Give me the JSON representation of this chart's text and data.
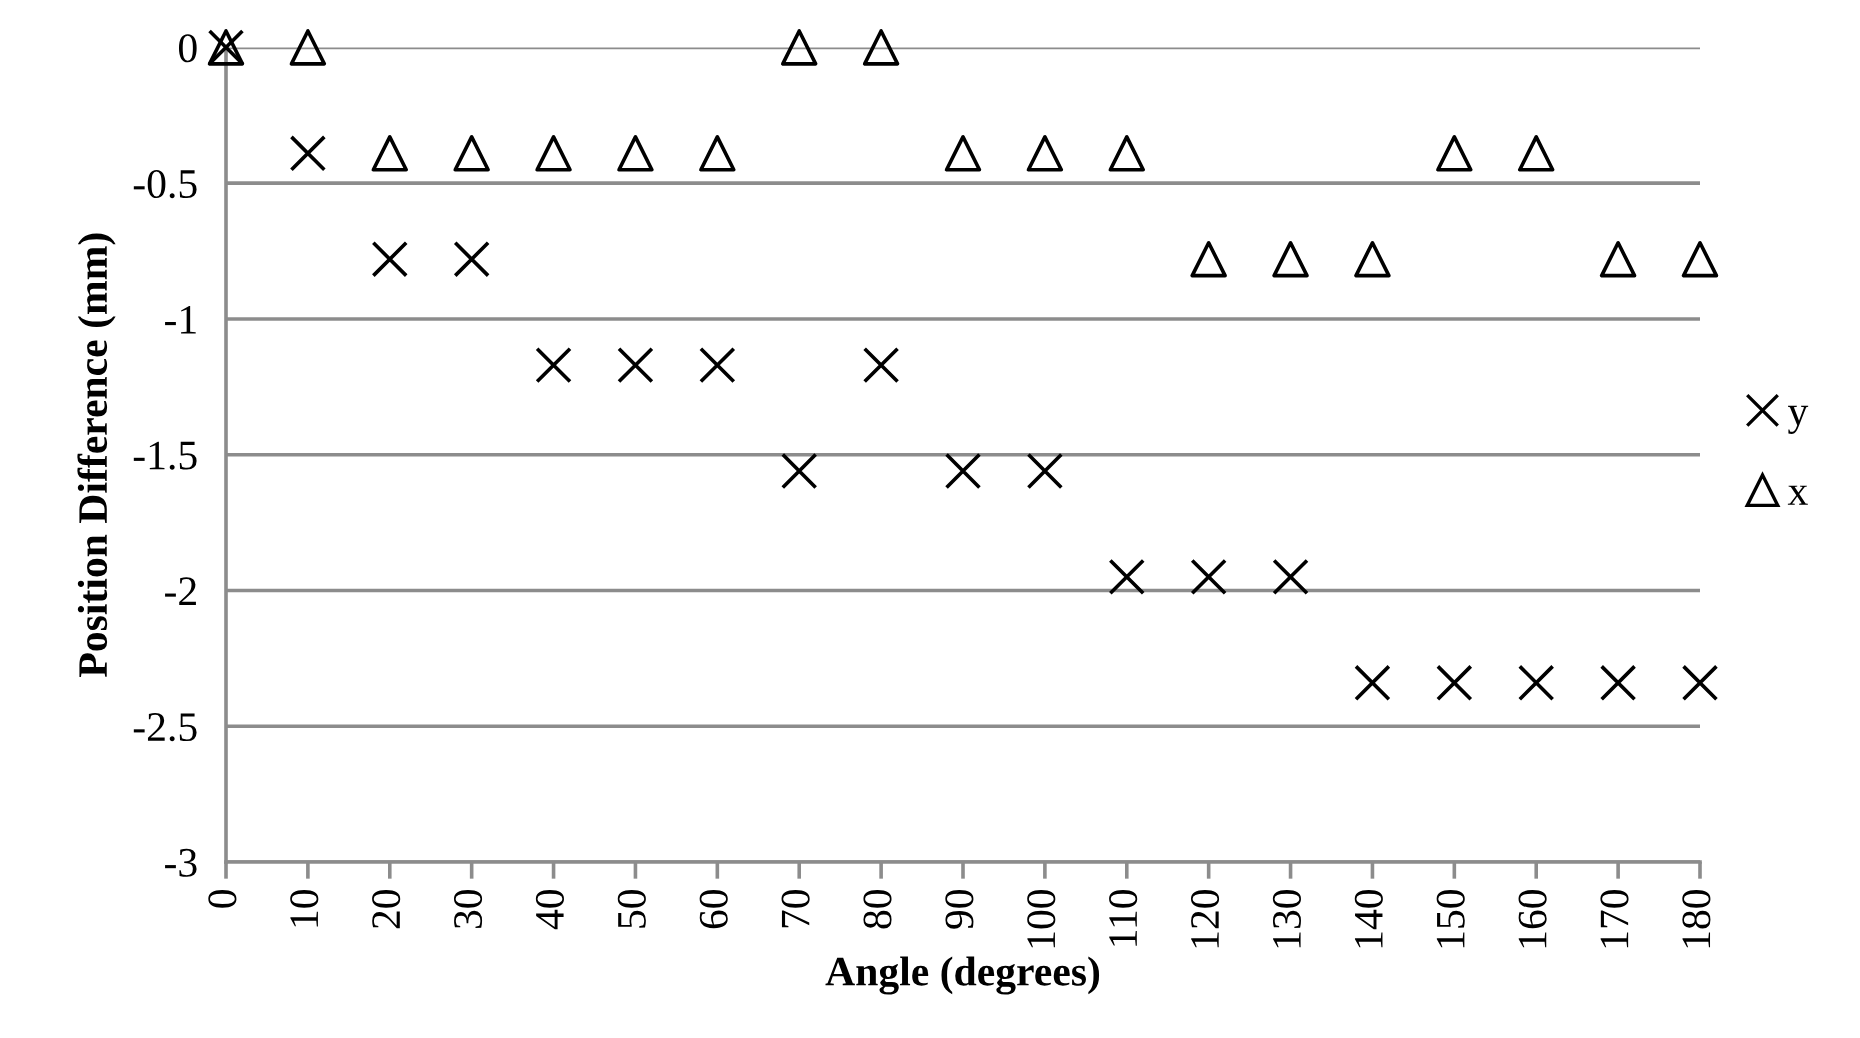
{
  "chart_data": {
    "type": "scatter",
    "xlabel": "Angle (degrees)",
    "ylabel": "Position Difference (mm)",
    "x": [
      0,
      10,
      20,
      30,
      40,
      50,
      60,
      70,
      80,
      90,
      100,
      110,
      120,
      130,
      140,
      150,
      160,
      170,
      180
    ],
    "series": [
      {
        "name": "y",
        "color": "#000000",
        "marker": "cross",
        "values": [
          0,
          -0.39,
          -0.78,
          -0.78,
          -1.17,
          -1.17,
          -1.17,
          -1.56,
          -1.17,
          -1.56,
          -1.56,
          -1.95,
          -1.95,
          -1.95,
          -2.34,
          -2.34,
          -2.34,
          -2.34,
          -2.34
        ]
      },
      {
        "name": "x",
        "color": "#000000",
        "marker": "triangle",
        "values": [
          0,
          0,
          -0.39,
          -0.39,
          -0.39,
          -0.39,
          -0.39,
          0,
          0,
          -0.39,
          -0.39,
          -0.39,
          -0.78,
          -0.78,
          -0.78,
          -0.39,
          -0.39,
          -0.78,
          -0.78
        ]
      }
    ],
    "xlim": [
      0,
      180
    ],
    "xticks": [
      0,
      10,
      20,
      30,
      40,
      50,
      60,
      70,
      80,
      90,
      100,
      110,
      120,
      130,
      140,
      150,
      160,
      170,
      180
    ],
    "ylim": [
      -3,
      0
    ],
    "yticks": [
      -3,
      -2.5,
      -2,
      -1.5,
      -1,
      -0.5,
      0
    ],
    "grid": "y",
    "legend": "right"
  }
}
